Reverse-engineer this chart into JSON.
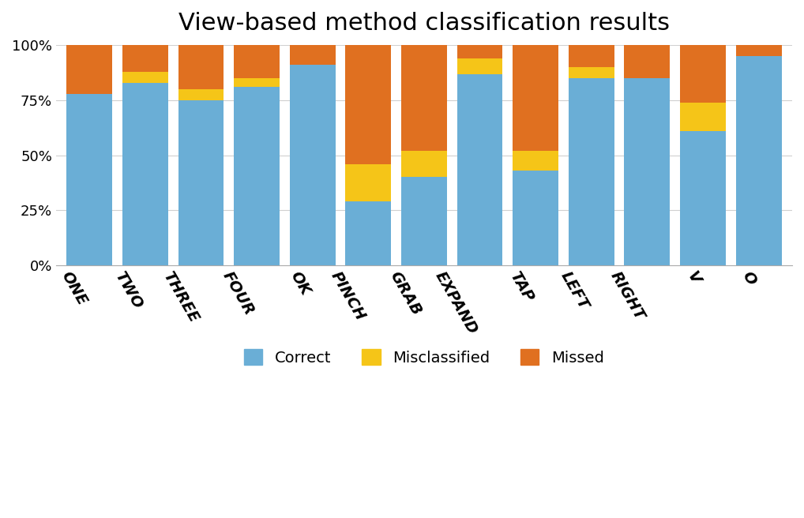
{
  "categories": [
    "ONE",
    "TWO",
    "THREE",
    "FOUR",
    "OK",
    "PINCH",
    "GRAB",
    "EXPAND",
    "TAP",
    "LEFT",
    "RIGHT",
    "V",
    "O"
  ],
  "correct": [
    78,
    83,
    75,
    81,
    91,
    29,
    40,
    87,
    43,
    85,
    85,
    61,
    95
  ],
  "misclassified": [
    0,
    5,
    5,
    4,
    0,
    17,
    12,
    7,
    9,
    5,
    0,
    13,
    0
  ],
  "missed": [
    22,
    12,
    20,
    15,
    9,
    54,
    48,
    6,
    48,
    10,
    15,
    26,
    5
  ],
  "color_correct": "#6aaed6",
  "color_misclassified": "#f5c518",
  "color_missed": "#e07020",
  "title": "View-based method classification results",
  "title_fontsize": 22,
  "legend_labels": [
    "Correct",
    "Misclassified",
    "Missed"
  ],
  "ylabel_ticks": [
    "0%",
    "25%",
    "50%",
    "75%",
    "100%"
  ],
  "ytick_values": [
    0,
    25,
    50,
    75,
    100
  ],
  "bar_width": 0.82,
  "background_color": "#ffffff",
  "grid_color": "#d0d0d0",
  "label_rotation": -60,
  "label_fontsize": 14
}
